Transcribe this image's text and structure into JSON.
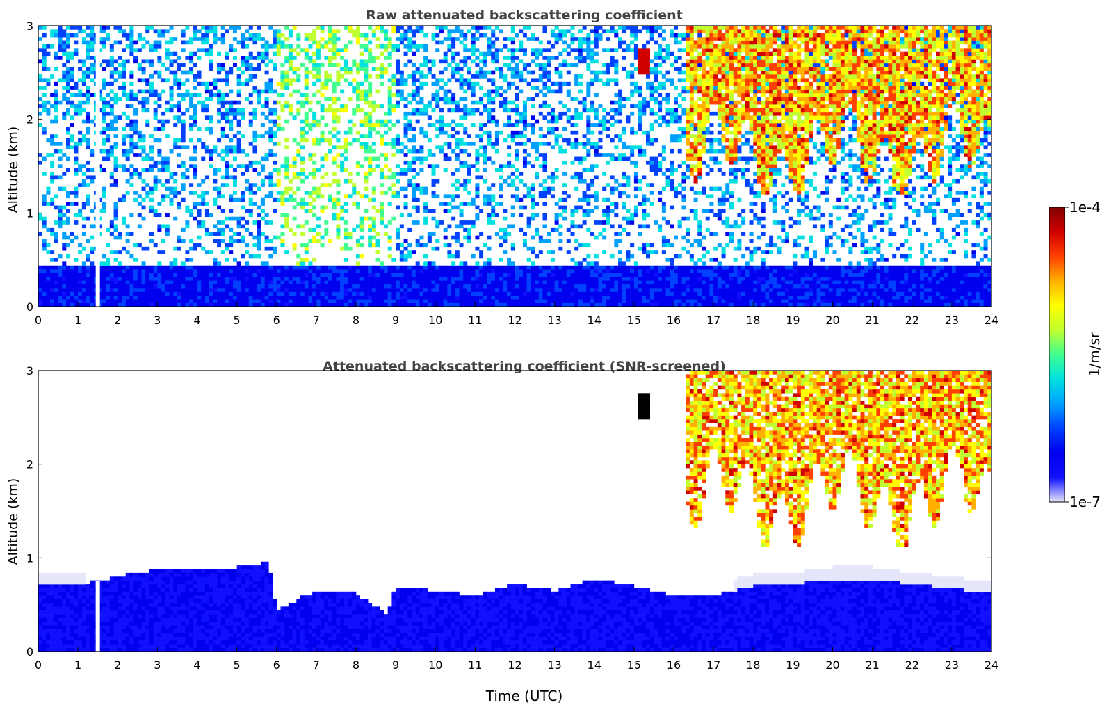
{
  "chart_data": [
    {
      "type": "heatmap",
      "title": "Raw attenuated backscattering coefficient",
      "xlabel": "",
      "ylabel": "Altitude (km)",
      "xlim": [
        0,
        24
      ],
      "ylim": [
        0,
        3
      ],
      "xticks": [
        "0",
        "1",
        "2",
        "3",
        "4",
        "5",
        "6",
        "7",
        "8",
        "9",
        "10",
        "11",
        "12",
        "13",
        "14",
        "15",
        "16",
        "17",
        "18",
        "19",
        "20",
        "21",
        "22",
        "23",
        "24"
      ],
      "yticks": [
        "0",
        "1",
        "2",
        "3"
      ],
      "gap_time_utc": 1.5,
      "features": [
        {
          "kind": "boundary-layer",
          "time_range": [
            0,
            24
          ],
          "top_km": 0.45,
          "level": 0.2
        },
        {
          "kind": "noise",
          "time_range": [
            0,
            24
          ],
          "altitude_range": [
            0.5,
            3
          ],
          "level": 0.4
        },
        {
          "kind": "enhanced-noise",
          "time_range": [
            6,
            9
          ],
          "level": 0.6
        },
        {
          "kind": "cloud",
          "time_range": [
            15.1,
            15.4
          ],
          "altitude_range": [
            2.5,
            2.75
          ],
          "level": 0.95
        },
        {
          "kind": "cirrus",
          "time_range": [
            16.3,
            24
          ],
          "altitude_range": [
            1.2,
            3
          ],
          "level": 0.75
        }
      ]
    },
    {
      "type": "heatmap",
      "title": "Attenuated backscattering coefficient (SNR-screened)",
      "xlabel": "Time (UTC)",
      "ylabel": "Altitude (km)",
      "xlim": [
        0,
        24
      ],
      "ylim": [
        0,
        3
      ],
      "xticks": [
        "0",
        "1",
        "2",
        "3",
        "4",
        "5",
        "6",
        "7",
        "8",
        "9",
        "10",
        "11",
        "12",
        "13",
        "14",
        "15",
        "16",
        "17",
        "18",
        "19",
        "20",
        "21",
        "22",
        "23",
        "24"
      ],
      "yticks": [
        "0",
        "1",
        "2",
        "3"
      ],
      "gap_time_utc": 1.5,
      "boundary_layer_top_km": [
        [
          0,
          0.7
        ],
        [
          1,
          0.72
        ],
        [
          2,
          0.8
        ],
        [
          3,
          0.88
        ],
        [
          4,
          0.88
        ],
        [
          5,
          0.9
        ],
        [
          5.8,
          0.95
        ],
        [
          6,
          0.45
        ],
        [
          7,
          0.65
        ],
        [
          8,
          0.62
        ],
        [
          8.8,
          0.4
        ],
        [
          9,
          0.7
        ],
        [
          10,
          0.65
        ],
        [
          11,
          0.6
        ],
        [
          12,
          0.72
        ],
        [
          13,
          0.65
        ],
        [
          14,
          0.78
        ],
        [
          15,
          0.7
        ],
        [
          16,
          0.6
        ],
        [
          17,
          0.6
        ],
        [
          18,
          0.7
        ],
        [
          19,
          0.72
        ],
        [
          20,
          0.78
        ],
        [
          21,
          0.78
        ],
        [
          22,
          0.72
        ],
        [
          23,
          0.68
        ],
        [
          24,
          0.62
        ]
      ],
      "features": [
        {
          "kind": "cloud",
          "time_range": [
            15.1,
            15.4
          ],
          "altitude_range": [
            2.5,
            2.75
          ],
          "level": 1.0
        },
        {
          "kind": "cirrus",
          "time_range": [
            16.3,
            24
          ],
          "altitude_range": [
            1.1,
            3
          ],
          "level": 0.75
        }
      ]
    }
  ],
  "colorbar": {
    "label": "1/m/sr",
    "max_label": "1e-4",
    "min_label": "1e-7",
    "scale": "log"
  },
  "colors": {
    "title": "#444444",
    "colormap": [
      "#e6e6fa",
      "#1010ff",
      "#0000ee",
      "#0040ff",
      "#00a0ff",
      "#00e0e0",
      "#40ff90",
      "#c0ff30",
      "#ffff00",
      "#ffb000",
      "#ff4000",
      "#d00000",
      "#800000"
    ]
  }
}
